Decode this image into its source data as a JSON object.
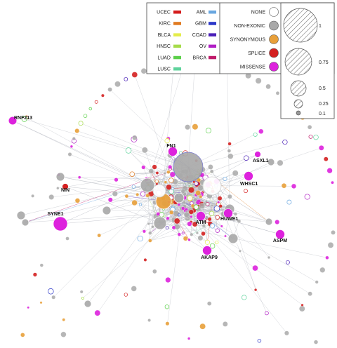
{
  "colors": {
    "edge": "#b9bcc4",
    "none_fill": "#ffffff",
    "none_stroke": "#555555",
    "non_exonic": "#a9a9a9",
    "synonymous": "#e8a03a",
    "splice": "#d42020",
    "missense": "#dd22dd",
    "size_hatch": "#777777"
  },
  "legend": {
    "cancer_types_col1": [
      {
        "label": "UCEC",
        "color": "#d41c1c"
      },
      {
        "label": "KIRC",
        "color": "#e07a20"
      },
      {
        "label": "BLCA",
        "color": "#e4ec4a"
      },
      {
        "label": "HNSC",
        "color": "#a6dc4a"
      },
      {
        "label": "LUAD",
        "color": "#5cd04a"
      },
      {
        "label": "LUSC",
        "color": "#5fd39c"
      }
    ],
    "cancer_types_col2": [
      {
        "label": "AML",
        "color": "#6aa7e0"
      },
      {
        "label": "GBM",
        "color": "#2a36c8"
      },
      {
        "label": "COAD",
        "color": "#4a1fb8"
      },
      {
        "label": "OV",
        "color": "#b01ec4"
      },
      {
        "label": "BRCA",
        "color": "#c01a6a"
      }
    ],
    "mutation_types": [
      {
        "label": "NONE",
        "color": "#ffffff"
      },
      {
        "label": "NON-EXONIC",
        "color": "#a9a9a9"
      },
      {
        "label": "SYNONYMOUS",
        "color": "#e8a03a"
      },
      {
        "label": "SPLICE",
        "color": "#d42020"
      },
      {
        "label": "MISSENSE",
        "color": "#dd22dd"
      }
    ],
    "sizes": [
      {
        "label": "1",
        "value": 1
      },
      {
        "label": "0.75",
        "value": 0.75
      },
      {
        "label": "0.5",
        "value": 0.5
      },
      {
        "label": "0.25",
        "value": 0.25
      },
      {
        "label": "0.1",
        "value": 0.1
      }
    ]
  },
  "genes": [
    {
      "name": "RNF213",
      "type": "missense",
      "size": 0.2
    },
    {
      "name": "FN1",
      "type": "missense",
      "size": 0.25
    },
    {
      "name": "ASXL1",
      "type": "missense",
      "size": 0.1
    },
    {
      "name": "NIN",
      "type": "splice",
      "size": 0.1
    },
    {
      "name": "WHSC1",
      "type": "missense",
      "size": 0.25
    },
    {
      "name": "SYNE1",
      "type": "missense",
      "size": 0.5
    },
    {
      "name": "HUWE1",
      "type": "missense",
      "size": 0.25
    },
    {
      "name": "ATM",
      "type": "missense",
      "size": 0.25
    },
    {
      "name": "ASPM",
      "type": "missense",
      "size": 0.25
    },
    {
      "name": "AKAP9",
      "type": "missense",
      "size": 0.25
    }
  ]
}
